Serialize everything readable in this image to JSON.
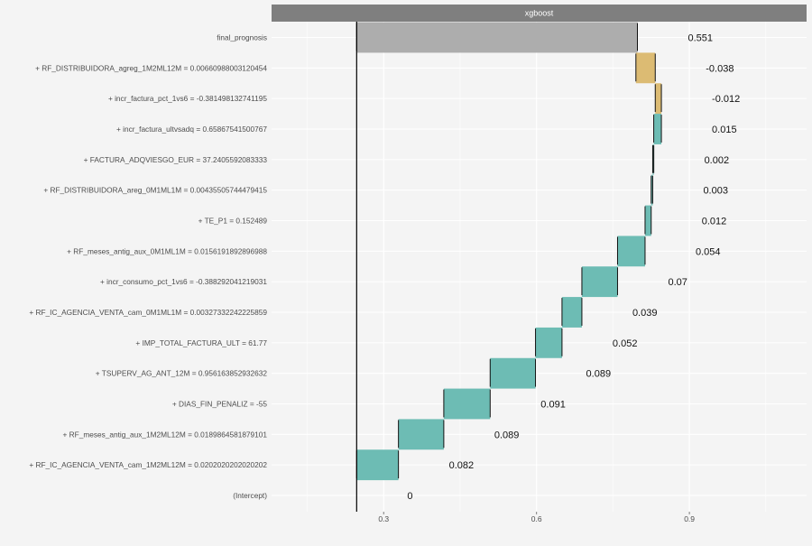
{
  "chart_data": {
    "type": "bar",
    "subtype": "waterfall",
    "panel_title": "xgboost",
    "x_ticks": [
      0.3,
      0.6,
      0.9
    ],
    "xlim": [
      0.08,
      1.13
    ],
    "grid": true,
    "colors": {
      "increase": "#6dbcb4",
      "decrease": "#dcbb73",
      "final": "#adadad",
      "panel_strip": "#7f7f7f",
      "background": "#f4f4f4"
    },
    "rows": [
      {
        "label": "final_prognosis",
        "contribution": 0.551,
        "display": "0.551",
        "kind": "final"
      },
      {
        "label": "+ RF_DISTRIBUIDORA_agreg_1M2ML12M = 0.00660988003120454",
        "contribution": -0.038,
        "display": "-0.038",
        "kind": "decrease"
      },
      {
        "label": "+ incr_factura_pct_1vs6 = -0.381498132741195",
        "contribution": -0.012,
        "display": "-0.012",
        "kind": "decrease"
      },
      {
        "label": "+ incr_factura_ultvsadq = 0.65867541500767",
        "contribution": 0.015,
        "display": "0.015",
        "kind": "increase"
      },
      {
        "label": "+ FACTURA_ADQVIESGO_EUR = 37.2405592083333",
        "contribution": 0.002,
        "display": "0.002",
        "kind": "increase"
      },
      {
        "label": "+ RF_DISTRIBUIDORA_areg_0M1ML1M = 0.00435505744479415",
        "contribution": 0.003,
        "display": "0.003",
        "kind": "increase"
      },
      {
        "label": "+ TE_P1 = 0.152489",
        "contribution": 0.012,
        "display": "0.012",
        "kind": "increase"
      },
      {
        "label": "+ RF_meses_antig_aux_0M1ML1M = 0.0156191892896988",
        "contribution": 0.054,
        "display": "0.054",
        "kind": "increase"
      },
      {
        "label": "+ incr_consumo_pct_1vs6 = -0.388292041219031",
        "contribution": 0.07,
        "display": "0.07",
        "kind": "increase"
      },
      {
        "label": "+ RF_IC_AGENCIA_VENTA_cam_0M1ML1M = 0.00327332242225859",
        "contribution": 0.039,
        "display": "0.039",
        "kind": "increase"
      },
      {
        "label": "+ IMP_TOTAL_FACTURA_ULT = 61.77",
        "contribution": 0.052,
        "display": "0.052",
        "kind": "increase"
      },
      {
        "label": "+ TSUPERV_AG_ANT_12M = 0.956163852932632",
        "contribution": 0.089,
        "display": "0.089",
        "kind": "increase"
      },
      {
        "label": "+ DIAS_FIN_PENALIZ = -55",
        "contribution": 0.091,
        "display": "0.091",
        "kind": "increase"
      },
      {
        "label": "+ RF_meses_antig_aux_1M2ML12M = 0.0189864581879101",
        "contribution": 0.089,
        "display": "0.089",
        "kind": "increase"
      },
      {
        "label": "+ RF_IC_AGENCIA_VENTA_cam_1M2ML12M = 0.0202020202020202",
        "contribution": 0.082,
        "display": "0.082",
        "kind": "increase"
      },
      {
        "label": "(Intercept)",
        "contribution": 0,
        "display": "0",
        "kind": "intercept"
      }
    ],
    "intercept_value": 0.247,
    "final_prediction": 0.798
  }
}
